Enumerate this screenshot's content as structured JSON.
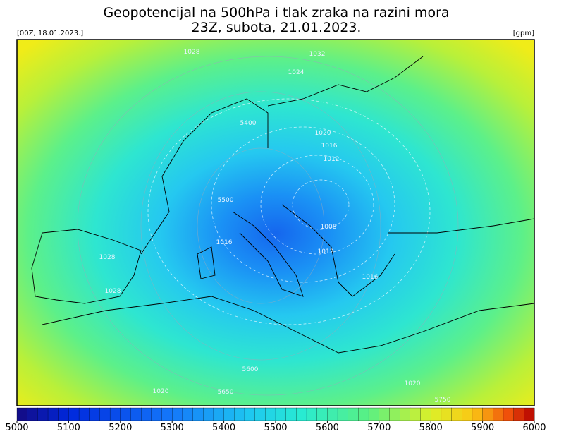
{
  "header": {
    "title": "Geopotencijal na 500hPa i tlak zraka na razini mora",
    "subtitle": "23Z, subota, 21.01.2023.",
    "run": "[00Z, 18.01.2023.]",
    "unit": "[gpm]"
  },
  "contour_labels": [
    "1028",
    "1032",
    "1024",
    "5400",
    "1020",
    "1016",
    "1012",
    "5500",
    "1016",
    "1008",
    "1012",
    "1028",
    "1028",
    "1016",
    "5600",
    "1020",
    "5650",
    "1020",
    "5750"
  ],
  "colorbar": {
    "ticks": [
      5000,
      5100,
      5200,
      5300,
      5400,
      5500,
      5600,
      5700,
      5800,
      5900,
      6000
    ]
  }
}
